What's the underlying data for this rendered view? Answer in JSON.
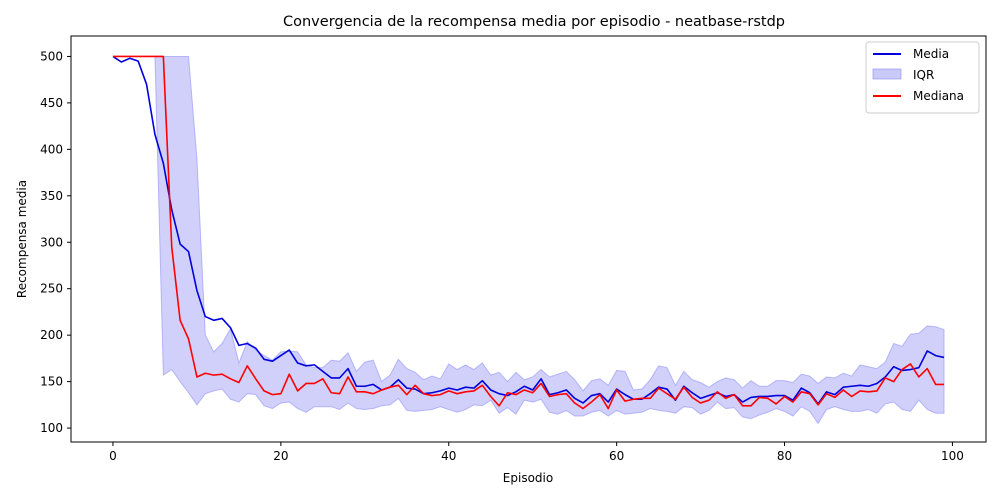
{
  "chart_data": {
    "type": "line",
    "title": "Convergencia de la recompensa media por episodio - neatbase-rstdp",
    "xlabel": "Episodio",
    "ylabel": "Recompensa media",
    "xlim": [
      -5,
      104
    ],
    "ylim": [
      85,
      522
    ],
    "xticks": [
      0,
      20,
      40,
      60,
      80,
      100
    ],
    "yticks": [
      100,
      150,
      200,
      250,
      300,
      350,
      400,
      450,
      500
    ],
    "grid": false,
    "legend_position": "top-right",
    "x": [
      0,
      1,
      2,
      3,
      4,
      5,
      6,
      7,
      8,
      9,
      10,
      11,
      12,
      13,
      14,
      15,
      16,
      17,
      18,
      19,
      20,
      21,
      22,
      23,
      24,
      25,
      26,
      27,
      28,
      29,
      30,
      31,
      32,
      33,
      34,
      35,
      36,
      37,
      38,
      39,
      40,
      41,
      42,
      43,
      44,
      45,
      46,
      47,
      48,
      49,
      50,
      51,
      52,
      53,
      54,
      55,
      56,
      57,
      58,
      59,
      60,
      61,
      62,
      63,
      64,
      65,
      66,
      67,
      68,
      69,
      70,
      71,
      72,
      73,
      74,
      75,
      76,
      77,
      78,
      79,
      80,
      81,
      82,
      83,
      84,
      85,
      86,
      87,
      88,
      89,
      90,
      91,
      92,
      93,
      94,
      95,
      96,
      97,
      98,
      99
    ],
    "series": [
      {
        "name": "Media",
        "kind": "line",
        "color": "#0000dd",
        "values": [
          500,
          494,
          498,
          495,
          470,
          416,
          385,
          335,
          298,
          290,
          248,
          220,
          216,
          218,
          208,
          189,
          191,
          186,
          174,
          172,
          178,
          184,
          170,
          167,
          168,
          161,
          154,
          154,
          164,
          145,
          145,
          147,
          141,
          144,
          152,
          143,
          142,
          137,
          138,
          140,
          143,
          141,
          144,
          143,
          151,
          141,
          137,
          135,
          139,
          145,
          141,
          153,
          136,
          138,
          141,
          132,
          127,
          135,
          137,
          128,
          142,
          136,
          131,
          131,
          137,
          144,
          142,
          130,
          145,
          138,
          132,
          135,
          138,
          134,
          136,
          128,
          133,
          134,
          134,
          135,
          135,
          130,
          143,
          138,
          126,
          139,
          136,
          144,
          145,
          146,
          145,
          148,
          155,
          166,
          162,
          163,
          165,
          183,
          178,
          176
        ]
      },
      {
        "name": "IQR",
        "kind": "band",
        "color": "#8a8af5",
        "lower": [
          500,
          500,
          500,
          500,
          500,
          500,
          157,
          163,
          150,
          138,
          125,
          137,
          140,
          142,
          131,
          128,
          137,
          136,
          124,
          121,
          127,
          128,
          121,
          117,
          123,
          123,
          123,
          120,
          127,
          121,
          120,
          121,
          124,
          125,
          132,
          119,
          118,
          119,
          120,
          123,
          120,
          117,
          120,
          125,
          124,
          130,
          116,
          122,
          115,
          130,
          128,
          131,
          117,
          115,
          119,
          113,
          113,
          117,
          119,
          113,
          119,
          115,
          116,
          117,
          121,
          119,
          118,
          116,
          123,
          122,
          115,
          119,
          128,
          121,
          122,
          112,
          110,
          114,
          117,
          121,
          118,
          113,
          123,
          118,
          105,
          120,
          123,
          120,
          118,
          118,
          120,
          116,
          126,
          128,
          120,
          118,
          130,
          120,
          116,
          116
        ],
        "upper": [
          500,
          500,
          500,
          500,
          500,
          500,
          500,
          500,
          500,
          500,
          390,
          200,
          182,
          191,
          207,
          170,
          193,
          184,
          178,
          173,
          182,
          183,
          182,
          168,
          165,
          165,
          173,
          172,
          181,
          161,
          171,
          173,
          150,
          157,
          174,
          164,
          160,
          152,
          156,
          153,
          169,
          163,
          168,
          163,
          170,
          157,
          160,
          150,
          160,
          152,
          155,
          163,
          155,
          158,
          161,
          152,
          140,
          151,
          153,
          146,
          162,
          161,
          141,
          142,
          152,
          167,
          165,
          146,
          161,
          152,
          149,
          144,
          150,
          154,
          152,
          143,
          151,
          145,
          145,
          151,
          151,
          149,
          158,
          156,
          148,
          155,
          154,
          159,
          156,
          168,
          166,
          164,
          171,
          191,
          188,
          201,
          202,
          210,
          209,
          206
        ]
      },
      {
        "name": "Mediana",
        "kind": "line",
        "color": "#ff0000",
        "values": [
          500,
          500,
          500,
          500,
          500,
          500,
          500,
          295,
          216,
          196,
          155,
          159,
          157,
          158,
          153,
          149,
          167,
          153,
          140,
          136,
          137,
          158,
          140,
          148,
          148,
          153,
          138,
          137,
          155,
          139,
          139,
          137,
          141,
          144,
          146,
          136,
          146,
          137,
          135,
          136,
          140,
          137,
          139,
          140,
          146,
          134,
          124,
          138,
          136,
          141,
          138,
          148,
          134,
          136,
          137,
          127,
          121,
          128,
          136,
          121,
          141,
          129,
          131,
          132,
          132,
          143,
          137,
          131,
          144,
          133,
          127,
          130,
          139,
          132,
          136,
          124,
          124,
          133,
          132,
          126,
          134,
          128,
          139,
          137,
          125,
          137,
          133,
          141,
          134,
          140,
          139,
          140,
          154,
          150,
          163,
          169,
          155,
          164,
          147,
          147
        ]
      }
    ]
  }
}
